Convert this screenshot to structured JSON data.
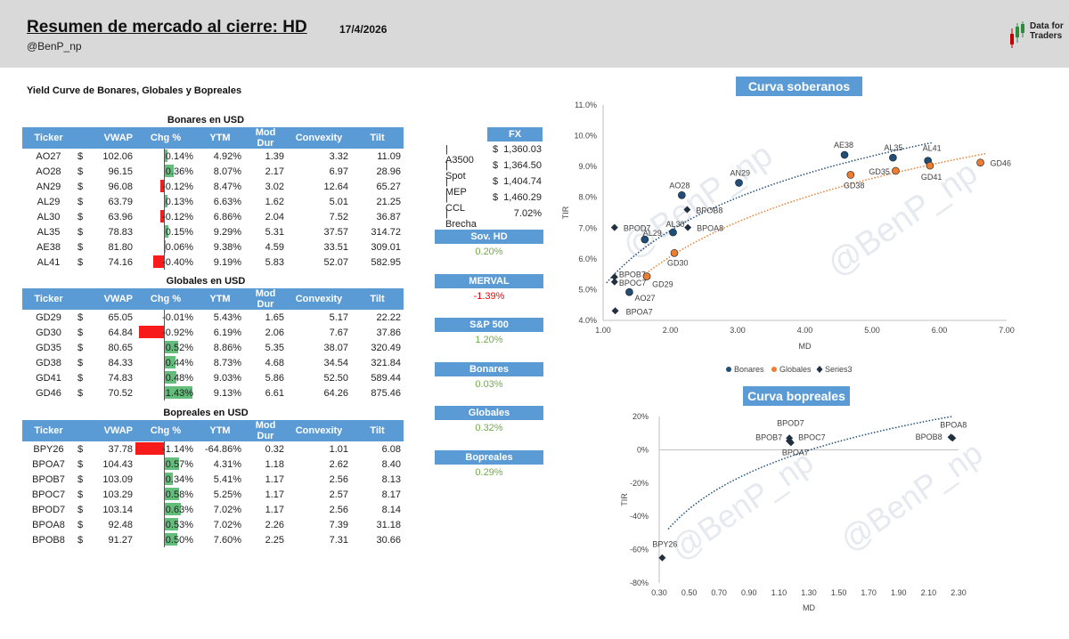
{
  "header": {
    "title": "Resumen de mercado al cierre: HD",
    "date": "17/4/2026",
    "handle": "@BenP_np",
    "logo_line1": "Data for",
    "logo_line2": "Traders"
  },
  "section_title": "Yield Curve de Bonares, Globales y Bopreales",
  "columns": [
    "Ticker",
    "VWAP",
    "Chg %",
    "YTM",
    "Mod Dur",
    "Convexity",
    "Tilt"
  ],
  "currency_symbol": "$",
  "bonares": {
    "title": "Bonares en USD",
    "rows": [
      {
        "ticker": "AO27",
        "vwap": "102.06",
        "chg": "0.14%",
        "chg_val": 0.14,
        "ytm": "4.92%",
        "md": "1.39",
        "cx": "3.32",
        "tilt": "11.09"
      },
      {
        "ticker": "AO28",
        "vwap": "96.15",
        "chg": "0.36%",
        "chg_val": 0.36,
        "ytm": "8.07%",
        "md": "2.17",
        "cx": "6.97",
        "tilt": "28.96"
      },
      {
        "ticker": "AN29",
        "vwap": "96.08",
        "chg": "-0.12%",
        "chg_val": -0.12,
        "ytm": "8.47%",
        "md": "3.02",
        "cx": "12.64",
        "tilt": "65.27"
      },
      {
        "ticker": "AL29",
        "vwap": "63.79",
        "chg": "0.13%",
        "chg_val": 0.13,
        "ytm": "6.63%",
        "md": "1.62",
        "cx": "5.01",
        "tilt": "21.25"
      },
      {
        "ticker": "AL30",
        "vwap": "63.96",
        "chg": "-0.12%",
        "chg_val": -0.12,
        "ytm": "6.86%",
        "md": "2.04",
        "cx": "7.52",
        "tilt": "36.87"
      },
      {
        "ticker": "AL35",
        "vwap": "78.83",
        "chg": "0.15%",
        "chg_val": 0.15,
        "ytm": "9.29%",
        "md": "5.31",
        "cx": "37.57",
        "tilt": "314.72"
      },
      {
        "ticker": "AE38",
        "vwap": "81.80",
        "chg": "0.06%",
        "chg_val": 0.06,
        "ytm": "9.38%",
        "md": "4.59",
        "cx": "33.51",
        "tilt": "309.01"
      },
      {
        "ticker": "AL41",
        "vwap": "74.16",
        "chg": "-0.40%",
        "chg_val": -0.4,
        "ytm": "9.19%",
        "md": "5.83",
        "cx": "52.07",
        "tilt": "582.95"
      }
    ]
  },
  "globales": {
    "title": "Globales en USD",
    "rows": [
      {
        "ticker": "GD29",
        "vwap": "65.05",
        "chg": "-0.01%",
        "chg_val": -0.01,
        "ytm": "5.43%",
        "md": "1.65",
        "cx": "5.17",
        "tilt": "22.22"
      },
      {
        "ticker": "GD30",
        "vwap": "64.84",
        "chg": "-0.92%",
        "chg_val": -0.92,
        "ytm": "6.19%",
        "md": "2.06",
        "cx": "7.67",
        "tilt": "37.86"
      },
      {
        "ticker": "GD35",
        "vwap": "80.65",
        "chg": "0.52%",
        "chg_val": 0.52,
        "ytm": "8.86%",
        "md": "5.35",
        "cx": "38.07",
        "tilt": "320.49"
      },
      {
        "ticker": "GD38",
        "vwap": "84.33",
        "chg": "0.44%",
        "chg_val": 0.44,
        "ytm": "8.73%",
        "md": "4.68",
        "cx": "34.54",
        "tilt": "321.84"
      },
      {
        "ticker": "GD41",
        "vwap": "74.83",
        "chg": "0.48%",
        "chg_val": 0.48,
        "ytm": "9.03%",
        "md": "5.86",
        "cx": "52.50",
        "tilt": "589.44"
      },
      {
        "ticker": "GD46",
        "vwap": "70.52",
        "chg": "1.43%",
        "chg_val": 1.43,
        "ytm": "9.13%",
        "md": "6.61",
        "cx": "64.26",
        "tilt": "875.46"
      }
    ]
  },
  "bopreales": {
    "title": "Bopreales en USD",
    "rows": [
      {
        "ticker": "BPY26",
        "vwap": "37.78",
        "chg": "-1.14%",
        "chg_val": -1.14,
        "ytm": "-64.86%",
        "md": "0.32",
        "cx": "1.01",
        "tilt": "6.08"
      },
      {
        "ticker": "BPOA7",
        "vwap": "104.43",
        "chg": "0.57%",
        "chg_val": 0.57,
        "ytm": "4.31%",
        "md": "1.18",
        "cx": "2.62",
        "tilt": "8.40"
      },
      {
        "ticker": "BPOB7",
        "vwap": "103.09",
        "chg": "0.34%",
        "chg_val": 0.34,
        "ytm": "5.41%",
        "md": "1.17",
        "cx": "2.56",
        "tilt": "8.13"
      },
      {
        "ticker": "BPOC7",
        "vwap": "103.29",
        "chg": "0.58%",
        "chg_val": 0.58,
        "ytm": "5.25%",
        "md": "1.17",
        "cx": "2.57",
        "tilt": "8.17"
      },
      {
        "ticker": "BPOD7",
        "vwap": "103.14",
        "chg": "0.63%",
        "chg_val": 0.63,
        "ytm": "7.02%",
        "md": "1.17",
        "cx": "2.56",
        "tilt": "8.14"
      },
      {
        "ticker": "BPOA8",
        "vwap": "92.48",
        "chg": "0.53%",
        "chg_val": 0.53,
        "ytm": "7.02%",
        "md": "2.26",
        "cx": "7.39",
        "tilt": "31.18"
      },
      {
        "ticker": "BPOB8",
        "vwap": "91.27",
        "chg": "0.50%",
        "chg_val": 0.5,
        "ytm": "7.60%",
        "md": "2.25",
        "cx": "7.31",
        "tilt": "30.66"
      }
    ]
  },
  "fx": {
    "title": "FX",
    "rows": [
      {
        "label": "| A3500",
        "symbol": "$",
        "value": "1,360.03"
      },
      {
        "label": "| Spot",
        "symbol": "$",
        "value": "1,364.50"
      },
      {
        "label": "| MEP",
        "symbol": "$",
        "value": "1,404.74"
      },
      {
        "label": "| CCL",
        "symbol": "$",
        "value": "1,460.29"
      },
      {
        "label": "| Brecha",
        "symbol": "",
        "value": "7.02%"
      }
    ]
  },
  "metrics": [
    {
      "label": "Sov. HD",
      "value": "0.20%",
      "color": "#70ad47"
    },
    {
      "label": "MERVAL",
      "value": "-1.39%",
      "color": "#ff0000"
    },
    {
      "label": "S&P 500",
      "value": "1.20%",
      "color": "#70ad47"
    },
    {
      "label": "Bonares",
      "value": "0.03%",
      "color": "#70ad47"
    },
    {
      "label": "Globales",
      "value": "0.32%",
      "color": "#70ad47"
    },
    {
      "label": "Bopreales",
      "value": "0.29%",
      "color": "#70ad47"
    }
  ],
  "colors": {
    "header_bg": "#d9d9d9",
    "accent": "#5b9bd5",
    "positive": "#63be7b",
    "negative": "#f81b1b",
    "bonares": "#1f4e79",
    "globales": "#ed7d31",
    "series3": "#203040"
  },
  "watermark": "@BenP_np",
  "chart_data": [
    {
      "type": "scatter",
      "title": "Curva soberanos",
      "xlabel": "MD",
      "ylabel": "TIR",
      "xlim": [
        1.0,
        7.0
      ],
      "ylim": [
        4.0,
        11.0
      ],
      "xticks": [
        "1.00",
        "2.00",
        "3.00",
        "4.00",
        "5.00",
        "6.00",
        "7.00"
      ],
      "yticks": [
        "4.0%",
        "5.0%",
        "6.0%",
        "7.0%",
        "8.0%",
        "9.0%",
        "10.0%",
        "11.0%"
      ],
      "legend": [
        "Bonares",
        "Globales",
        "Series3"
      ],
      "series": [
        {
          "name": "Bonares",
          "points": [
            {
              "label": "AO27",
              "x": 1.39,
              "y": 4.92
            },
            {
              "label": "AO28",
              "x": 2.17,
              "y": 8.07
            },
            {
              "label": "AN29",
              "x": 3.02,
              "y": 8.47
            },
            {
              "label": "AL29",
              "x": 1.62,
              "y": 6.63
            },
            {
              "label": "AL30",
              "x": 2.04,
              "y": 6.86
            },
            {
              "label": "AL35",
              "x": 5.31,
              "y": 9.29
            },
            {
              "label": "AE38",
              "x": 4.59,
              "y": 9.38
            },
            {
              "label": "AL41",
              "x": 5.83,
              "y": 9.19
            }
          ]
        },
        {
          "name": "Globales",
          "points": [
            {
              "label": "GD29",
              "x": 1.65,
              "y": 5.43
            },
            {
              "label": "GD30",
              "x": 2.06,
              "y": 6.19
            },
            {
              "label": "GD35",
              "x": 5.35,
              "y": 8.86
            },
            {
              "label": "GD38",
              "x": 4.68,
              "y": 8.73
            },
            {
              "label": "GD41",
              "x": 5.86,
              "y": 9.03
            },
            {
              "label": "GD46",
              "x": 6.61,
              "y": 9.13
            }
          ]
        },
        {
          "name": "Series3",
          "points": [
            {
              "label": "BPOA7",
              "x": 1.18,
              "y": 4.31
            },
            {
              "label": "BPOB7",
              "x": 1.17,
              "y": 5.41
            },
            {
              "label": "BPOC7",
              "x": 1.17,
              "y": 5.25
            },
            {
              "label": "BPOD7",
              "x": 1.17,
              "y": 7.02
            },
            {
              "label": "BPOA8",
              "x": 2.26,
              "y": 7.02
            },
            {
              "label": "BPOB8",
              "x": 2.25,
              "y": 7.6
            }
          ]
        }
      ]
    },
    {
      "type": "scatter",
      "title": "Curva bopreales",
      "xlabel": "MD",
      "ylabel": "TIR",
      "xlim": [
        0.3,
        2.3
      ],
      "ylim": [
        -80,
        20
      ],
      "xticks": [
        "0.30",
        "0.50",
        "0.70",
        "0.90",
        "1.10",
        "1.30",
        "1.50",
        "1.70",
        "1.90",
        "2.10",
        "2.30"
      ],
      "yticks": [
        "-80%",
        "-60%",
        "-40%",
        "-20%",
        "0%",
        "20%"
      ],
      "series": [
        {
          "name": "Bopreales",
          "points": [
            {
              "label": "BPY26",
              "x": 0.32,
              "y": -64.86
            },
            {
              "label": "BPOA7",
              "x": 1.18,
              "y": 4.31
            },
            {
              "label": "BPOB7",
              "x": 1.17,
              "y": 5.41
            },
            {
              "label": "BPOC7",
              "x": 1.17,
              "y": 5.25
            },
            {
              "label": "BPOD7",
              "x": 1.17,
              "y": 7.02
            },
            {
              "label": "BPOA8",
              "x": 2.26,
              "y": 7.02
            },
            {
              "label": "BPOB8",
              "x": 2.25,
              "y": 7.6
            }
          ]
        }
      ]
    }
  ]
}
